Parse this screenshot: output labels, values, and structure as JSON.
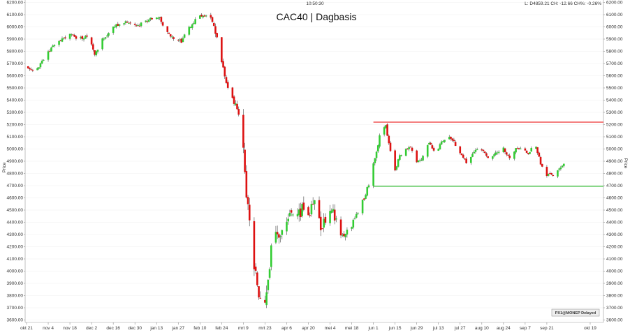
{
  "header": {
    "time": "10:50:30",
    "quote": "L: D4859.21 CH: -12.66 CH%: -0.26%"
  },
  "badge": "PX1@MONEP Delayed",
  "chart_data": {
    "type": "candlestick",
    "title": "CAC40 | Dagbasis",
    "ylabel_left": "Price",
    "ylabel_right": "Price",
    "ylim": [
      3580,
      6220
    ],
    "yticks": [
      "3600.00",
      "3700.00",
      "3800.00",
      "3900.00",
      "4000.00",
      "4100.00",
      "4200.00",
      "4300.00",
      "4400.00",
      "4500.00",
      "4600.00",
      "4700.00",
      "4800.00",
      "4900.00",
      "5000.00",
      "5100.00",
      "5200.00",
      "5300.00",
      "5400.00",
      "5500.00",
      "5600.00",
      "5700.00",
      "5800.00",
      "5900.00",
      "6000.00",
      "6100.00",
      "6200.00"
    ],
    "xticks": [
      "okt 21",
      "nov 4",
      "nov 18",
      "dec 2",
      "dec 16",
      "dec 30",
      "jan 13",
      "jan 27",
      "feb 10",
      "feb 24",
      "mrt 9",
      "mrt 23",
      "apr 6",
      "apr 20",
      "mei 4",
      "mei 18",
      "jun 1",
      "jun 15",
      "jun 29",
      "jul 13",
      "jul 27",
      "aug 10",
      "aug 24",
      "sep 7",
      "sep 21",
      "okt 19"
    ],
    "xtick_day_index": [
      0,
      14,
      28,
      42,
      56,
      70,
      84,
      98,
      112,
      126,
      140,
      154,
      168,
      182,
      196,
      210,
      224,
      238,
      252,
      266,
      280,
      294,
      308,
      322,
      336,
      364
    ],
    "last_day_index": 364,
    "colors": {
      "up": "#33cc33",
      "down": "#dd1111",
      "resistance": "#ee3333",
      "support": "#33bb33"
    },
    "levels": [
      {
        "role": "resistance",
        "value": 5220,
        "from_day": 224
      },
      {
        "role": "support",
        "value": 4695,
        "from_day": 224
      }
    ],
    "anchors": [
      [
        0,
        5680
      ],
      [
        6,
        5640
      ],
      [
        12,
        5760
      ],
      [
        20,
        5880
      ],
      [
        28,
        5940
      ],
      [
        34,
        5900
      ],
      [
        40,
        5930
      ],
      [
        44,
        5760
      ],
      [
        48,
        5880
      ],
      [
        56,
        6000
      ],
      [
        64,
        6040
      ],
      [
        72,
        6010
      ],
      [
        80,
        6060
      ],
      [
        86,
        6080
      ],
      [
        90,
        5960
      ],
      [
        96,
        5900
      ],
      [
        100,
        5880
      ],
      [
        104,
        5970
      ],
      [
        110,
        6080
      ],
      [
        116,
        6100
      ],
      [
        120,
        6050
      ],
      [
        124,
        5840
      ],
      [
        128,
        5600
      ],
      [
        132,
        5430
      ],
      [
        136,
        5330
      ],
      [
        140,
        5050
      ],
      [
        142,
        4650
      ],
      [
        145,
        4300
      ],
      [
        147,
        4040
      ],
      [
        150,
        3800
      ],
      [
        152,
        3820
      ],
      [
        154,
        3700
      ],
      [
        157,
        4060
      ],
      [
        160,
        4380
      ],
      [
        163,
        4250
      ],
      [
        166,
        4380
      ],
      [
        170,
        4480
      ],
      [
        174,
        4400
      ],
      [
        178,
        4520
      ],
      [
        182,
        4420
      ],
      [
        186,
        4600
      ],
      [
        190,
        4380
      ],
      [
        194,
        4440
      ],
      [
        198,
        4500
      ],
      [
        202,
        4320
      ],
      [
        206,
        4300
      ],
      [
        210,
        4380
      ],
      [
        214,
        4480
      ],
      [
        218,
        4600
      ],
      [
        222,
        4740
      ],
      [
        226,
        4980
      ],
      [
        229,
        5180
      ],
      [
        232,
        5190
      ],
      [
        235,
        4980
      ],
      [
        238,
        4820
      ],
      [
        240,
        4920
      ],
      [
        244,
        5000
      ],
      [
        248,
        5010
      ],
      [
        252,
        4880
      ],
      [
        256,
        4940
      ],
      [
        260,
        5060
      ],
      [
        264,
        4960
      ],
      [
        268,
        5060
      ],
      [
        272,
        5110
      ],
      [
        276,
        5060
      ],
      [
        280,
        4970
      ],
      [
        284,
        4880
      ],
      [
        288,
        4950
      ],
      [
        292,
        5020
      ],
      [
        296,
        4960
      ],
      [
        300,
        4920
      ],
      [
        304,
        4980
      ],
      [
        308,
        5000
      ],
      [
        312,
        4930
      ],
      [
        316,
        5010
      ],
      [
        320,
        5000
      ],
      [
        324,
        4950
      ],
      [
        328,
        5060
      ],
      [
        332,
        4880
      ],
      [
        335,
        4770
      ],
      [
        338,
        4800
      ],
      [
        341,
        4790
      ],
      [
        345,
        4850
      ],
      [
        347,
        4870
      ]
    ]
  }
}
